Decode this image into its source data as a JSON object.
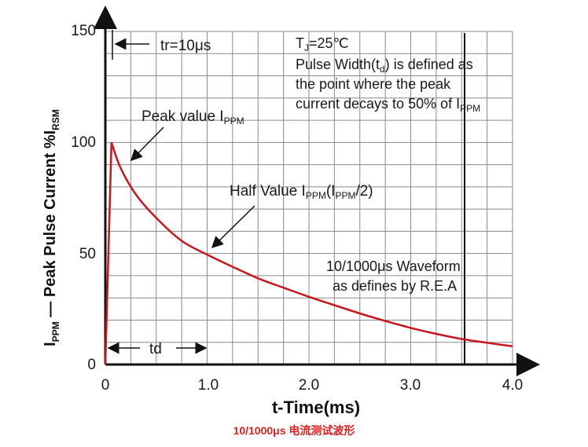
{
  "chart_data": {
    "type": "line",
    "x_values": [
      0,
      0.06,
      0.15,
      0.3,
      0.5,
      0.75,
      1.0,
      1.25,
      1.5,
      1.75,
      2.0,
      2.25,
      2.5,
      2.75,
      3.0,
      3.25,
      3.5,
      3.75,
      4.0
    ],
    "y_values": [
      0,
      100,
      88.5,
      76.6,
      66.0,
      55.7,
      49.5,
      44.0,
      38.8,
      34.6,
      30.5,
      26.7,
      23.0,
      19.6,
      16.5,
      13.8,
      11.5,
      9.8,
      8.2
    ],
    "xlim": [
      0,
      4.0
    ],
    "ylim": [
      0,
      150
    ],
    "line_color": "#c8161d",
    "grid": true,
    "x_ticks": [
      "0",
      "1.0",
      "2.0",
      "3.0",
      "4.0"
    ],
    "y_ticks": [
      "0",
      "50",
      "100",
      "150"
    ],
    "xlabel": "t-Time(ms)",
    "ylabel": {
      "i": "I",
      "i_sub": "PPM",
      "dash": " — Peak Pulse Current  %I",
      "rsm_sub": "RSM"
    },
    "annotations": {
      "tr_label": "tr=10μs",
      "td_label": "td",
      "tj_main": "T",
      "tj_sub": "J",
      "tj_rest": "=25℃",
      "pw_line1_a": "Pulse Width(t",
      "pw_line1_sub": "d",
      "pw_line1_b": ") is defined as",
      "pw_line2": "the point where the peak",
      "pw_line3_a": "current decays to 50% of I",
      "pw_line3_sub": "PPM",
      "peak_a": "Peak value I",
      "peak_sub": "PPM",
      "half_a": "Half Value I",
      "half_sub1": "PPM",
      "half_b": "(I",
      "half_sub2": "PPM",
      "half_c": "/2)",
      "wave_line1": "10/1000μs Waveform",
      "wave_line2": "as defines by R.E.A"
    }
  },
  "caption": "10/1000μs 电流测试波形"
}
